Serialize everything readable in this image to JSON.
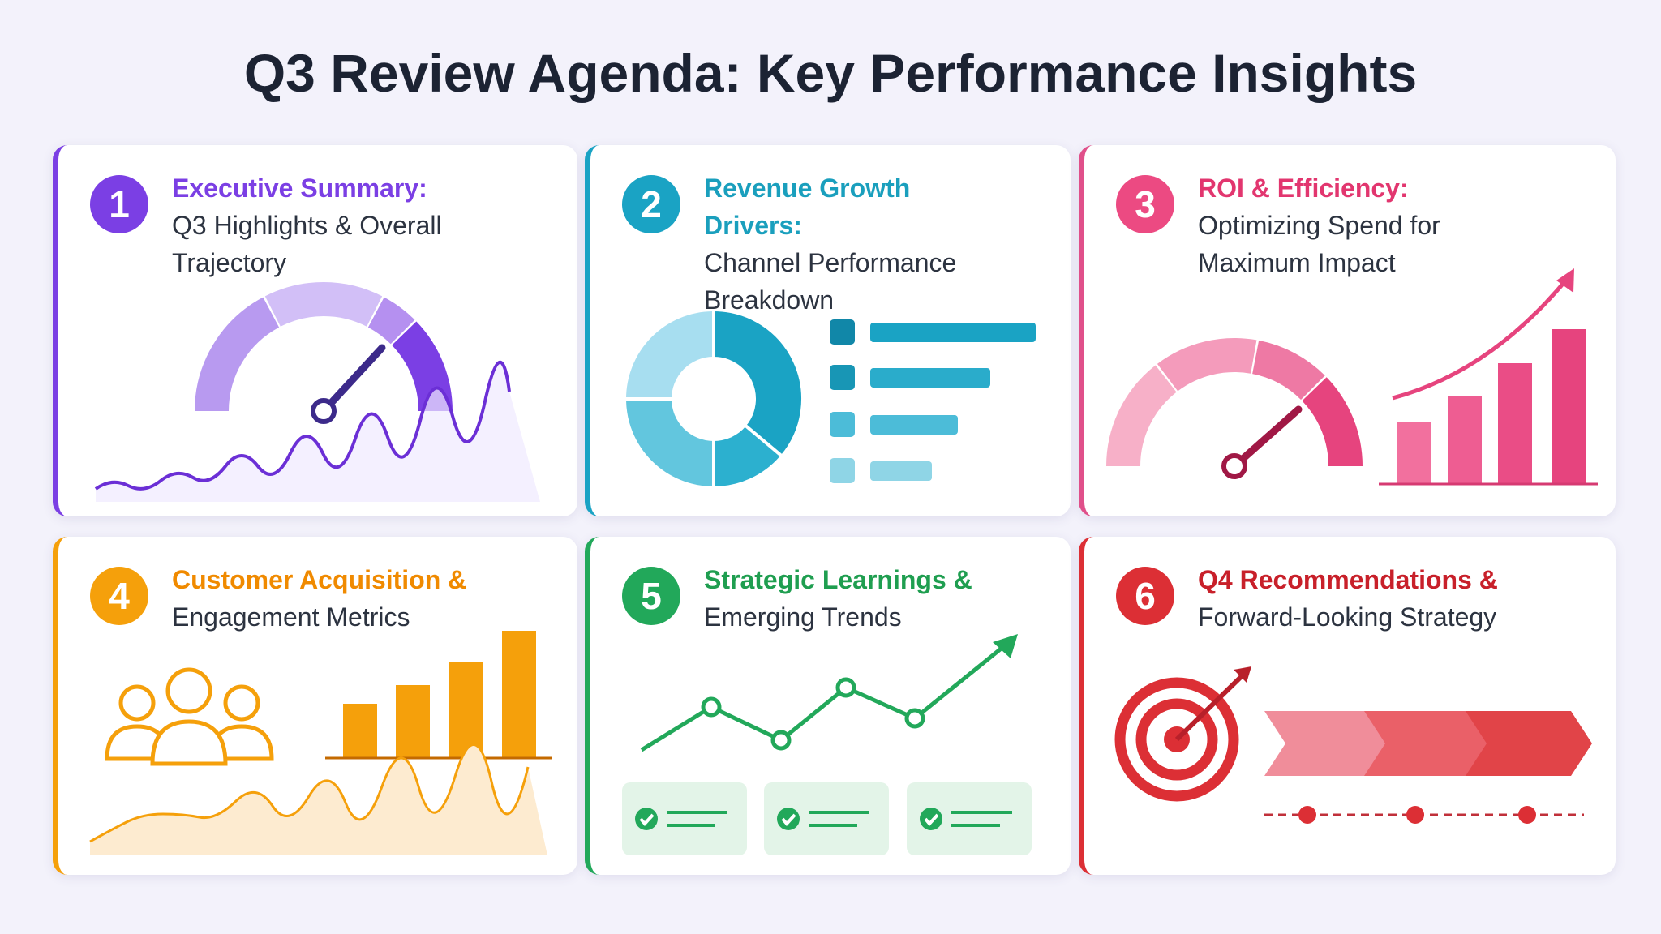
{
  "header": {
    "title": "Q3 Review Agenda: Key Performance Insights"
  },
  "cards": [
    {
      "number": "1",
      "heading": "Executive Summary:",
      "subtitle": "Q3 Highlights & Overall Trajectory"
    },
    {
      "number": "2",
      "heading": "Revenue Growth Drivers:",
      "subtitle": "Channel Performance Breakdown"
    },
    {
      "number": "3",
      "heading": "ROI & Efficiency:",
      "subtitle": "Optimizing Spend for Maximum Impact"
    },
    {
      "number": "4",
      "heading": "Customer Acquisition &",
      "subtitle": "Engagement Metrics"
    },
    {
      "number": "5",
      "heading": "Strategic Learnings &",
      "subtitle": "Emerging Trends"
    },
    {
      "number": "6",
      "heading": "Q4 Recommendations &",
      "subtitle": "Forward-Looking Strategy"
    }
  ]
}
